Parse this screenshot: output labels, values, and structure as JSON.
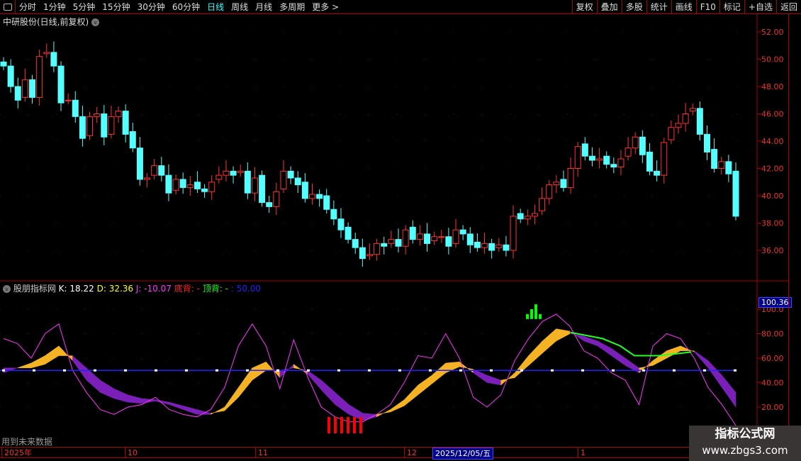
{
  "toolbar": {
    "periods": [
      "分时",
      "1分钟",
      "5分钟",
      "15分钟",
      "30分钟",
      "60分钟",
      "日线",
      "周线",
      "月线",
      "多周期",
      "更多 >"
    ],
    "active": "日线",
    "buttons": [
      "复权",
      "叠加",
      "多股",
      "统计",
      "画线",
      "F10",
      "标记",
      "+自选",
      "返回"
    ]
  },
  "main": {
    "title": "中研股份(日线,前复权)",
    "price_ticks": [
      "52.00",
      "50.00",
      "48.00",
      "46.00",
      "44.00",
      "42.00",
      "40.00",
      "38.00",
      "36.00"
    ]
  },
  "indicator": {
    "name": "股朋指标网",
    "k_label": "K: 18.22",
    "d_label": "D: 32.36",
    "j_label": "J: -10.07",
    "bottom_div": "底背: -",
    "top_div": "顶背: -",
    "level": ": 50.00",
    "ticks": [
      "100.0",
      "80.00",
      "60.00",
      "40.00",
      "20.00"
    ],
    "current_tag": "100.36"
  },
  "footer": {
    "future_data": "用到未来数据",
    "dates": [
      "2025年",
      "10",
      "11",
      "12",
      "1"
    ],
    "cursor_date": "2025/12/05/五"
  },
  "watermark": {
    "line1": "指标公式网",
    "line2": "www.zbgs3.com"
  },
  "colors": {
    "up": "#ff3232",
    "down": "#54ffff",
    "k_above": "#f5b323",
    "k_below": "#7a1fb8",
    "j": "#ff33ff",
    "level": "#2020ff"
  },
  "chart_data": {
    "type": "candlestick+kdj",
    "price_ylim": [
      34.5,
      53
    ],
    "close": [
      49.5,
      48.0,
      47.0,
      48.5,
      47.2,
      50.2,
      50.5,
      49.5,
      46.8,
      47.0,
      45.8,
      44.2,
      45.8,
      46.0,
      44.3,
      45.8,
      46.2,
      44.5,
      43.5,
      41.2,
      41.3,
      42.2,
      41.5,
      40.2,
      41.2,
      40.6,
      40.8,
      40.5,
      40.3,
      41.0,
      41.5,
      41.8,
      41.5,
      41.8,
      40.2,
      41.3,
      39.5,
      39.2,
      40.3,
      41.8,
      41.3,
      40.8,
      39.8,
      40.1,
      39.8,
      39.0,
      38.3,
      37.5,
      36.8,
      36.2,
      35.4,
      35.7,
      36.5,
      36.3,
      36.8,
      36.3,
      37.5,
      36.8,
      37.2,
      36.5,
      37.0,
      37.0,
      36.3,
      37.5,
      37.2,
      36.4,
      36.2,
      36.5,
      36.0,
      36.4,
      36.0,
      38.5,
      38.3,
      38.5,
      38.7,
      39.8,
      40.8,
      41.0,
      40.6,
      42.0,
      43.6,
      42.9,
      42.6,
      42.7,
      42.3,
      42.1,
      42.7,
      43.5,
      44.3,
      43.0,
      41.8,
      41.5,
      43.9,
      45.0,
      45.3,
      46.0,
      46.4,
      44.5,
      43.2,
      42.0,
      42.5,
      41.6,
      38.5
    ],
    "ind_ylim": [
      5,
      108
    ],
    "K": [
      48,
      52,
      56,
      62,
      70,
      58,
      42,
      32,
      27,
      24,
      23,
      25,
      22,
      18,
      14,
      14,
      20,
      36,
      52,
      57,
      44,
      55,
      47,
      34,
      22,
      14,
      9,
      12,
      18,
      26,
      38,
      46,
      56,
      57,
      48,
      40,
      38,
      48,
      62,
      74,
      84,
      82,
      74,
      70,
      62,
      54,
      48,
      58,
      66,
      70,
      65,
      52,
      36,
      20
    ],
    "D": [
      52,
      52,
      52,
      55,
      62,
      62,
      52,
      42,
      35,
      30,
      27,
      26,
      24,
      21,
      18,
      15,
      17,
      28,
      42,
      50,
      50,
      52,
      50,
      42,
      32,
      22,
      15,
      14,
      16,
      21,
      30,
      39,
      48,
      53,
      51,
      46,
      42,
      44,
      54,
      64,
      74,
      80,
      78,
      74,
      68,
      60,
      52,
      54,
      60,
      66,
      66,
      58,
      46,
      32
    ],
    "J": [
      76,
      72,
      60,
      80,
      88,
      50,
      32,
      18,
      14,
      20,
      22,
      28,
      18,
      14,
      12,
      18,
      36,
      70,
      88,
      70,
      35,
      75,
      45,
      20,
      12,
      8,
      8,
      14,
      22,
      40,
      62,
      60,
      80,
      60,
      28,
      20,
      30,
      58,
      76,
      90,
      96,
      86,
      66,
      60,
      48,
      42,
      22,
      70,
      80,
      76,
      60,
      36,
      22,
      5
    ],
    "level": 50
  }
}
